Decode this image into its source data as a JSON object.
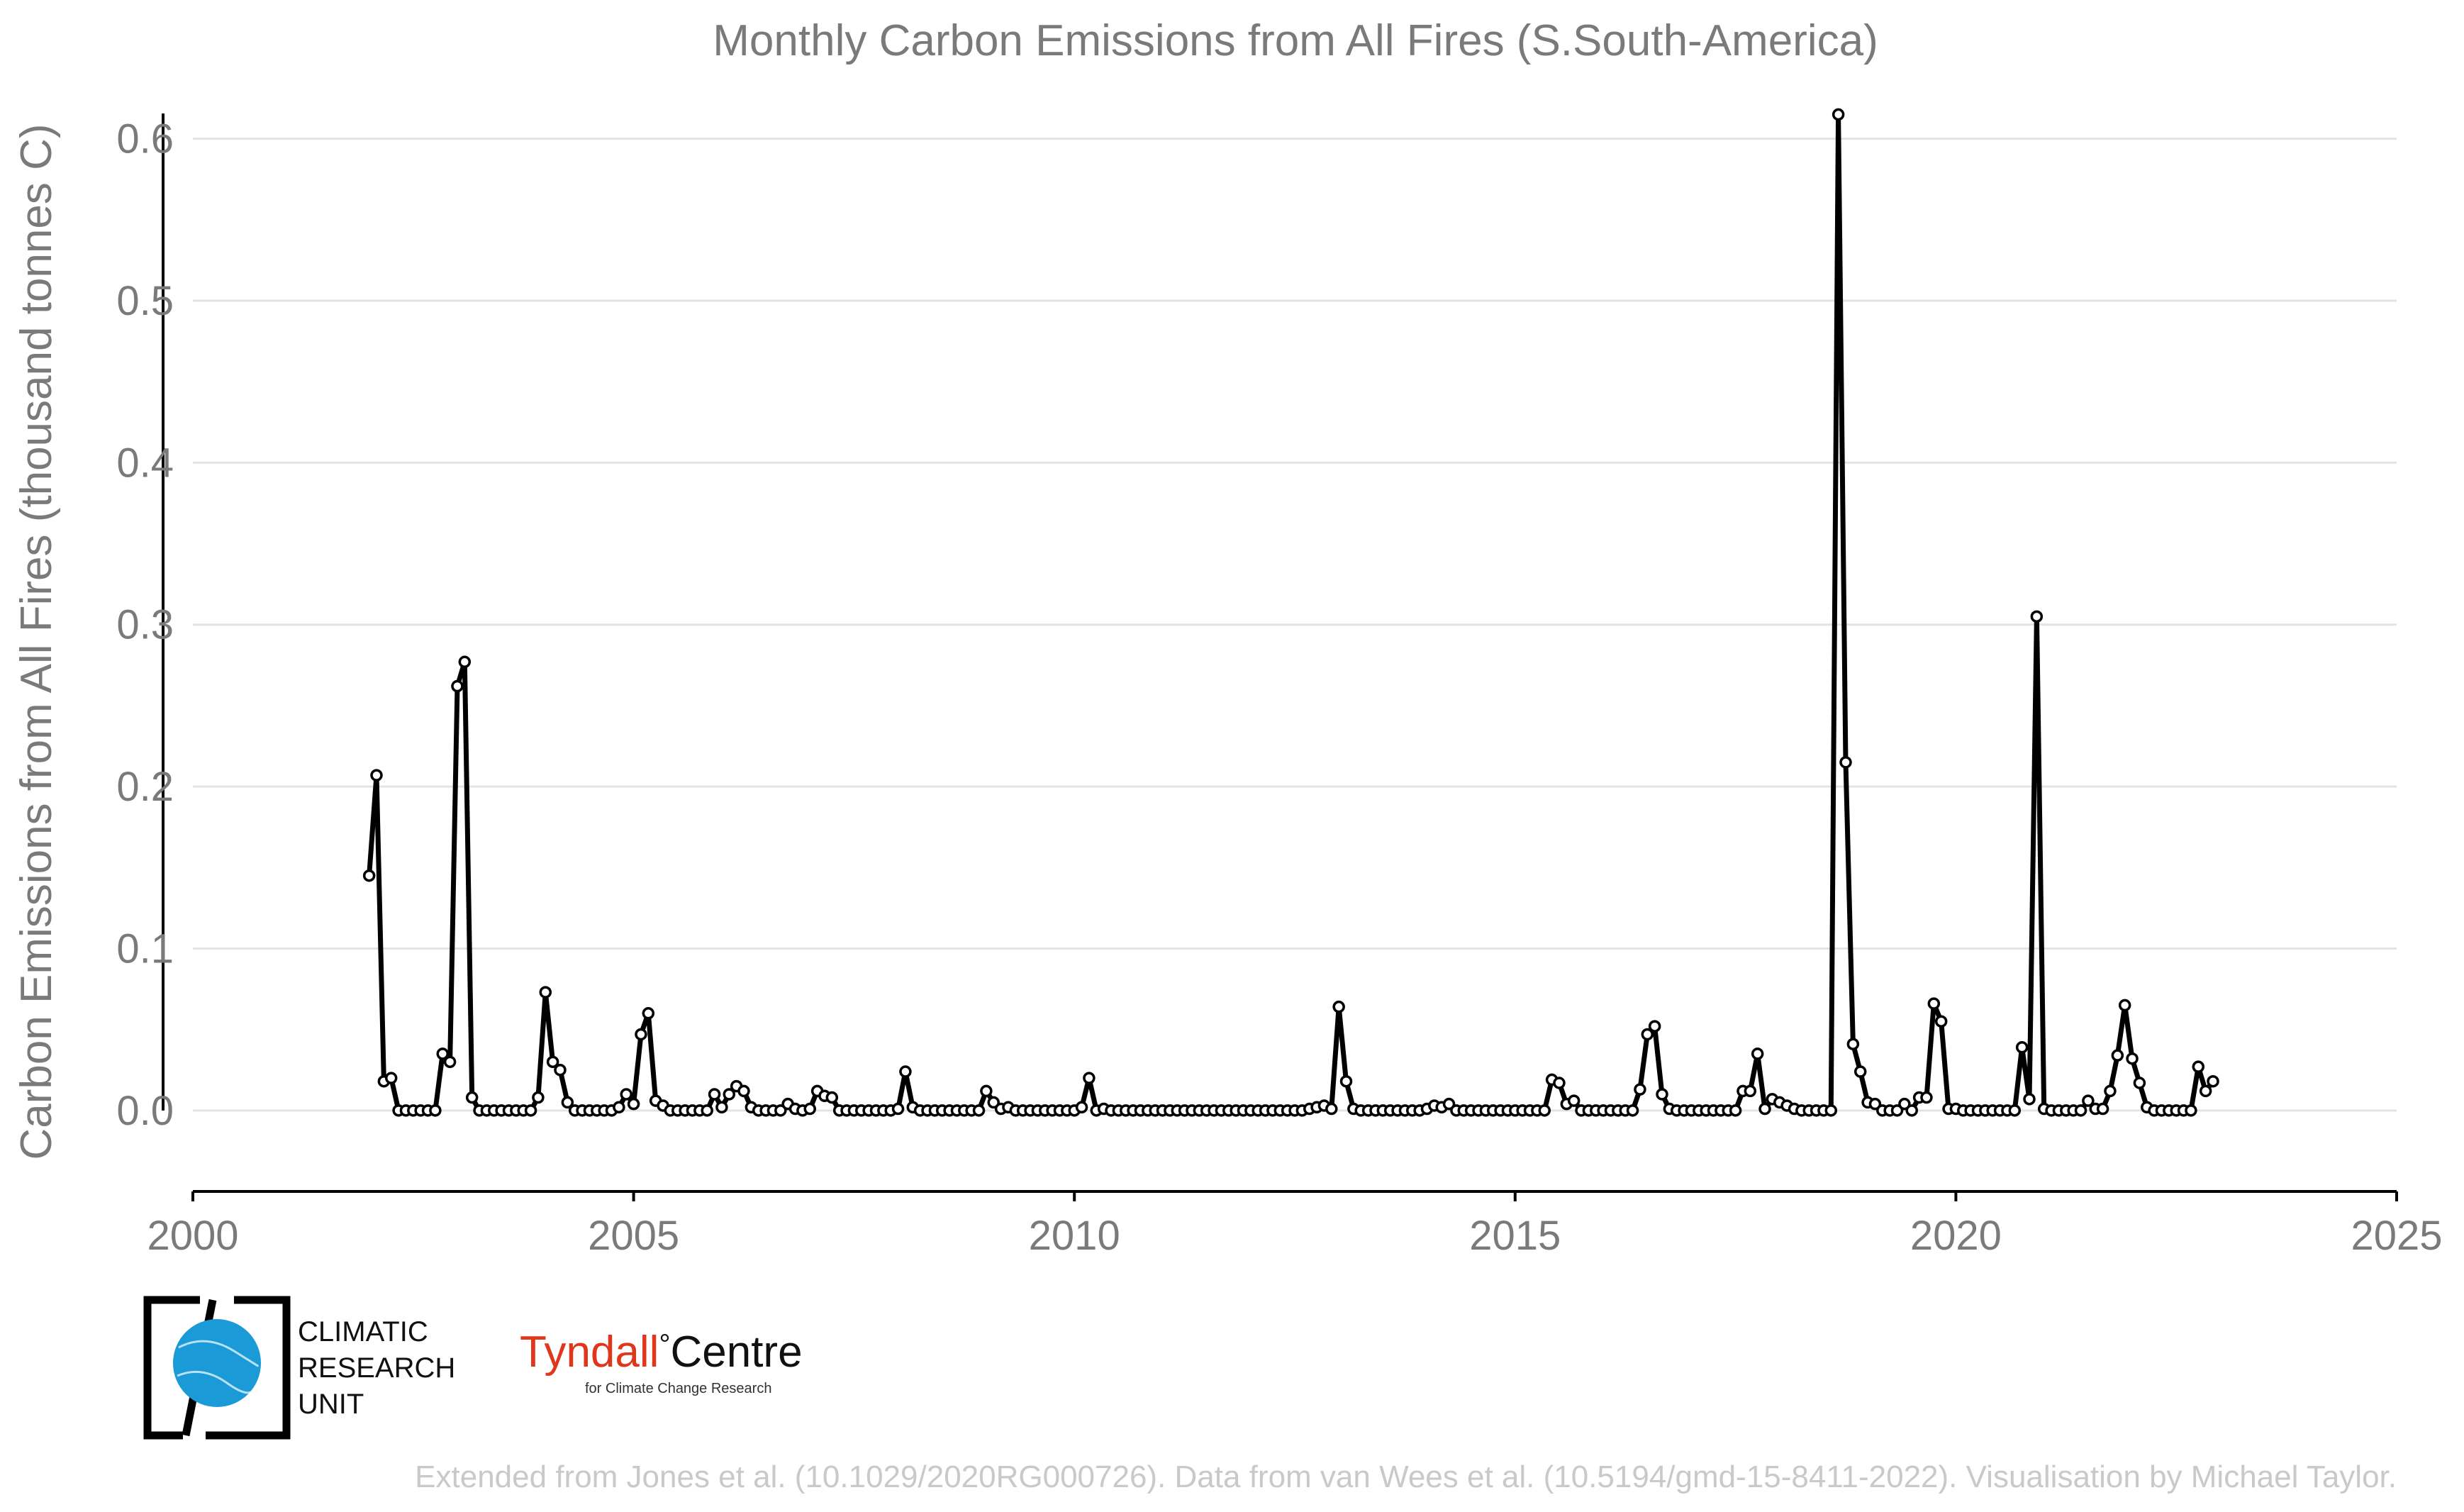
{
  "chart_data": {
    "type": "line",
    "title": "Monthly Carbon Emissions from All Fires (S.South-America)",
    "ylabel": "Carbon Emissions from All Fires (thousand tonnes C)",
    "xlabel": "",
    "xlim": [
      2000,
      2025
    ],
    "ylim": [
      -0.05,
      0.62
    ],
    "xticks": [
      "2000",
      "2005",
      "2010",
      "2015",
      "2020",
      "2025"
    ],
    "yticks": [
      "0.0",
      "0.1",
      "0.2",
      "0.3",
      "0.4",
      "0.5",
      "0.6"
    ],
    "grid": "horizontal",
    "legend": "none",
    "line_color": "#000000",
    "marker_fill": "#ffffff",
    "start_year": 2002,
    "start_month": 1,
    "values": [
      0.145,
      0.207,
      0.018,
      0.02,
      0.0,
      0.0,
      0.0,
      0.0,
      0.0,
      0.0,
      0.035,
      0.03,
      0.262,
      0.277,
      0.008,
      0.0,
      0.0,
      0.0,
      0.0,
      0.0,
      0.0,
      0.0,
      0.0,
      0.008,
      0.073,
      0.03,
      0.025,
      0.005,
      0.0,
      0.0,
      0.0,
      0.0,
      0.0,
      0.0,
      0.002,
      0.01,
      0.004,
      0.047,
      0.06,
      0.006,
      0.003,
      0.0,
      0.0,
      0.0,
      0.0,
      0.0,
      0.0,
      0.01,
      0.002,
      0.01,
      0.015,
      0.012,
      0.002,
      0.0,
      0.0,
      0.0,
      0.0,
      0.004,
      0.001,
      0.0,
      0.001,
      0.012,
      0.009,
      0.008,
      0.0,
      0.0,
      0.0,
      0.0,
      0.0,
      0.0,
      0.0,
      0.0,
      0.001,
      0.024,
      0.002,
      0.0,
      0.0,
      0.0,
      0.0,
      0.0,
      0.0,
      0.0,
      0.0,
      0.0,
      0.012,
      0.005,
      0.001,
      0.002,
      0.0,
      0.0,
      0.0,
      0.0,
      0.0,
      0.0,
      0.0,
      0.0,
      0.0,
      0.002,
      0.02,
      0.0,
      0.001,
      0.0,
      0.0,
      0.0,
      0.0,
      0.0,
      0.0,
      0.0,
      0.0,
      0.0,
      0.0,
      0.0,
      0.0,
      0.0,
      0.0,
      0.0,
      0.0,
      0.0,
      0.0,
      0.0,
      0.0,
      0.0,
      0.0,
      0.0,
      0.0,
      0.0,
      0.0,
      0.0,
      0.001,
      0.002,
      0.003,
      0.001,
      0.064,
      0.018,
      0.001,
      0.0,
      0.0,
      0.0,
      0.0,
      0.0,
      0.0,
      0.0,
      0.0,
      0.0,
      0.001,
      0.003,
      0.002,
      0.004,
      0.0,
      0.0,
      0.0,
      0.0,
      0.0,
      0.0,
      0.0,
      0.0,
      0.0,
      0.0,
      0.0,
      0.0,
      0.0,
      0.019,
      0.017,
      0.004,
      0.006,
      0.0,
      0.0,
      0.0,
      0.0,
      0.0,
      0.0,
      0.0,
      0.0,
      0.013,
      0.047,
      0.052,
      0.01,
      0.001,
      0.0,
      0.0,
      0.0,
      0.0,
      0.0,
      0.0,
      0.0,
      0.0,
      0.0,
      0.012,
      0.012,
      0.035,
      0.001,
      0.007,
      0.005,
      0.003,
      0.001,
      0.0,
      0.0,
      0.0,
      0.0,
      0.0,
      0.615,
      0.215,
      0.041,
      0.024,
      0.005,
      0.004,
      0.0,
      0.0,
      0.0,
      0.004,
      0.0,
      0.008,
      0.008,
      0.066,
      0.055,
      0.001,
      0.001,
      0.0,
      0.0,
      0.0,
      0.0,
      0.0,
      0.0,
      0.0,
      0.0,
      0.039,
      0.007,
      0.305,
      0.001,
      0.0,
      0.0,
      0.0,
      0.0,
      0.0,
      0.006,
      0.001,
      0.001,
      0.012,
      0.034,
      0.065,
      0.032,
      0.017,
      0.002,
      0.0,
      0.0,
      0.0,
      0.0,
      0.0,
      0.0,
      0.027,
      0.012,
      0.018
    ]
  },
  "footer": {
    "credit": "Extended from Jones et al. (10.1029/2020RG000726). Data from van Wees et al. (10.5194/gmd-15-8411-2022). Visualisation by Michael Taylor."
  },
  "logos": {
    "cru_lines": [
      "CLIMATIC",
      "RESEARCH",
      "UNIT"
    ],
    "cru_globe_color": "#1a9ad6",
    "tyndall_main": "Tyndall",
    "tyndall_degree": "°",
    "tyndall_centre": "Centre",
    "tyndall_sub": "for Climate Change Research",
    "tyndall_color": "#e0361b"
  }
}
